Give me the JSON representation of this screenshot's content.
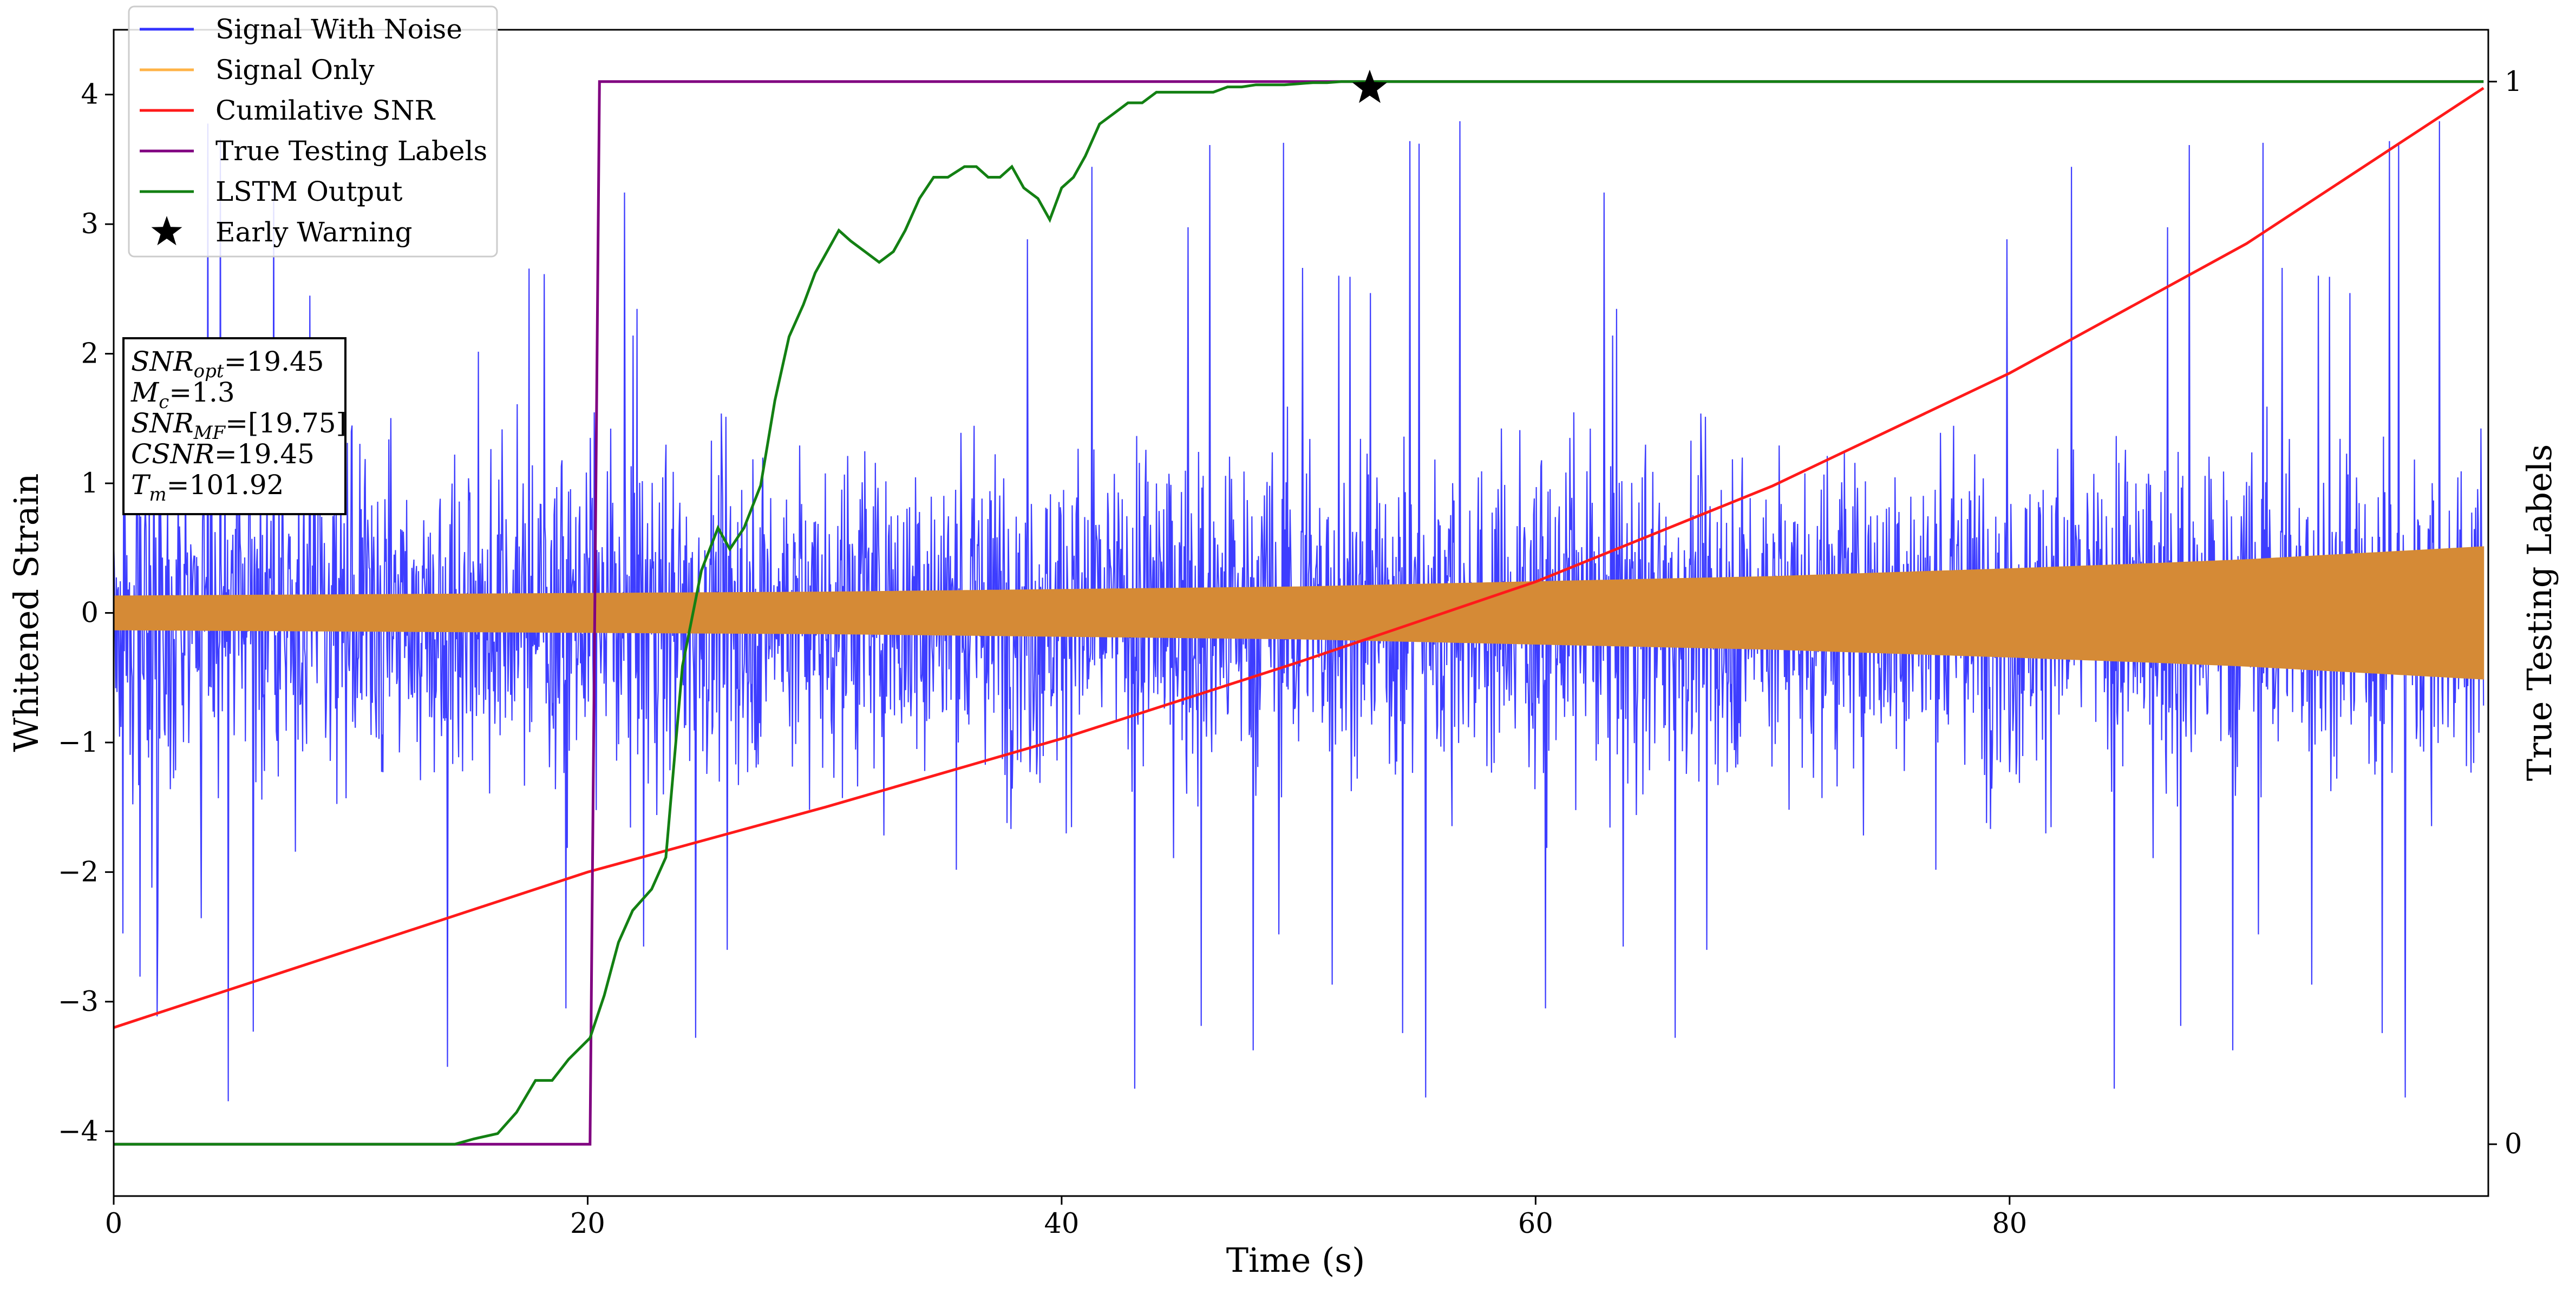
{
  "chart_data": {
    "type": "line",
    "xlabel": "Time (s)",
    "ylabel": "Whitened Strain",
    "y2label": "True Testing Labels",
    "xlim": [
      0,
      100.2
    ],
    "ylim": [
      -4.5,
      4.5
    ],
    "y2_scale": {
      "value_0_at_y": -4.1,
      "value_1_at_y": 4.1
    },
    "x_ticks": [
      "0",
      "20",
      "40",
      "60",
      "80"
    ],
    "x_tick_values": [
      0,
      20,
      40,
      60,
      80
    ],
    "y_ticks": [
      "−4",
      "−3",
      "−2",
      "−1",
      "0",
      "1",
      "2",
      "3",
      "4"
    ],
    "y_tick_values": [
      -4,
      -3,
      -2,
      -1,
      0,
      1,
      2,
      3,
      4
    ],
    "y2_ticks": [
      "0",
      "1"
    ],
    "y2_tick_values": [
      0,
      1
    ],
    "legend_position": "top-left",
    "series": [
      {
        "name": "Signal With Noise",
        "color": "#3333ff",
        "style": "noise",
        "x_range": [
          0,
          100
        ],
        "typical_abs_max": 2.3,
        "peak_abs_max": 3.9
      },
      {
        "name": "Signal Only",
        "color": "#d58a36",
        "legend_color": "#ffb347",
        "style": "envelope",
        "x": [
          0,
          10,
          20,
          30,
          40,
          50,
          55,
          60,
          70,
          80,
          86,
          90,
          95,
          100
        ],
        "amplitude": [
          0.13,
          0.14,
          0.15,
          0.16,
          0.18,
          0.2,
          0.22,
          0.24,
          0.28,
          0.34,
          0.38,
          0.41,
          0.46,
          0.51
        ]
      },
      {
        "name": "Cumilative SNR",
        "color": "#ff1a1a",
        "x": [
          0,
          10,
          20,
          30,
          40,
          50,
          60,
          70,
          80,
          90,
          100
        ],
        "y": [
          -3.2,
          -2.6,
          -2.0,
          -1.5,
          -0.97,
          -0.38,
          0.24,
          0.98,
          1.85,
          2.85,
          4.05
        ]
      },
      {
        "name": "True Testing Labels",
        "color": "#800080",
        "axis": "right",
        "x": [
          0,
          20.1,
          20.5,
          100
        ],
        "y": [
          0,
          0,
          1,
          1
        ]
      },
      {
        "name": "LSTM Output",
        "color": "#138013",
        "x": [
          0,
          14.4,
          15.2,
          16.2,
          17.0,
          17.8,
          18.5,
          19.2,
          20.1,
          20.7,
          21.3,
          21.9,
          22.7,
          23.3,
          24.0,
          24.8,
          25.5,
          26.0,
          26.6,
          27.3,
          27.9,
          28.5,
          29.1,
          29.6,
          30.1,
          30.6,
          31.1,
          31.7,
          32.3,
          32.9,
          33.4,
          34.0,
          34.6,
          35.2,
          35.9,
          36.4,
          36.9,
          37.4,
          37.9,
          38.4,
          39.0,
          39.5,
          40.0,
          40.5,
          41.0,
          41.6,
          42.2,
          42.8,
          43.4,
          44.0,
          44.6,
          45.2,
          45.8,
          46.4,
          47.0,
          47.6,
          48.2,
          48.8,
          49.4,
          50.0,
          50.6,
          51.2,
          51.8,
          52.4,
          53.0,
          53.6,
          54.2,
          55.0,
          60.0,
          70.0,
          80.0,
          90.0,
          100.0
        ],
        "y": [
          0,
          0,
          0.005,
          0.01,
          0.03,
          0.06,
          0.06,
          0.08,
          0.1,
          0.14,
          0.19,
          0.22,
          0.24,
          0.27,
          0.45,
          0.54,
          0.58,
          0.56,
          0.58,
          0.62,
          0.7,
          0.76,
          0.79,
          0.82,
          0.84,
          0.86,
          0.85,
          0.84,
          0.83,
          0.84,
          0.86,
          0.89,
          0.91,
          0.91,
          0.92,
          0.92,
          0.91,
          0.91,
          0.92,
          0.9,
          0.89,
          0.87,
          0.9,
          0.91,
          0.93,
          0.96,
          0.97,
          0.98,
          0.98,
          0.99,
          0.99,
          0.99,
          0.99,
          0.99,
          0.995,
          0.995,
          0.997,
          0.997,
          0.997,
          0.998,
          0.999,
          0.999,
          1.0,
          1.0,
          1.0,
          1.0,
          1.0,
          1.0,
          1.0,
          1.0,
          1.0,
          1.0,
          1.0
        ]
      },
      {
        "name": "Early Warning",
        "color": "#000000",
        "style": "marker-star",
        "x": 53.0,
        "y": 4.05
      }
    ],
    "annotations": [
      {
        "var": "SNR",
        "sub": "opt",
        "value": "=19.45"
      },
      {
        "var": "M",
        "sub": "c",
        "value": "=1.3"
      },
      {
        "var": "SNR",
        "sub": "MF",
        "value": "=[19.75]"
      },
      {
        "var": "CSNR",
        "sub": "",
        "value": "=19.45"
      },
      {
        "var": "T",
        "sub": "m",
        "value": "=101.92"
      }
    ]
  }
}
